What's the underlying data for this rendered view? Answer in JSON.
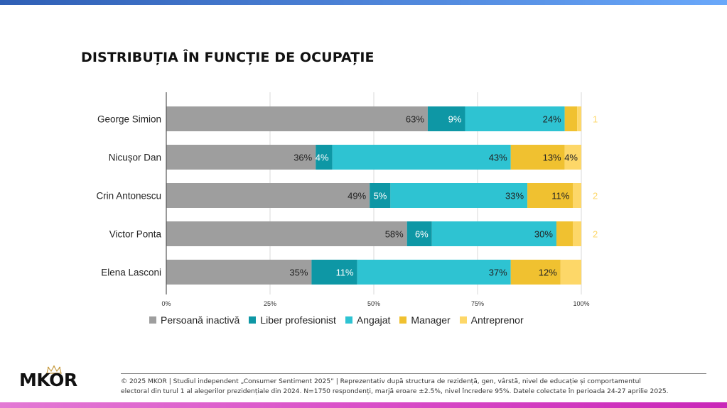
{
  "header": {
    "title": "DISTRIBUȚIA ÎN FUNCȚIE DE OCUPAȚIE"
  },
  "colors": {
    "top_bar": "#3f70c8",
    "bottom_bar": "#d94fc8",
    "gridline": "#d9d9d9",
    "axis": "#555555"
  },
  "chart_data": {
    "type": "bar",
    "orientation": "horizontal",
    "stacked": true,
    "title": "DISTRIBUȚIA ÎN FUNCȚIE DE OCUPAȚIE",
    "xlabel": "",
    "ylabel": "",
    "xlim": [
      0,
      100
    ],
    "x_ticks": [
      "0%",
      "25%",
      "50%",
      "75%",
      "100%"
    ],
    "grid": true,
    "legend_position": "bottom",
    "categories": [
      "George Simion",
      "Nicușor Dan",
      "Crin Antonescu",
      "Victor Ponta",
      "Elena Lasconi"
    ],
    "series": [
      {
        "name": "Persoană inactivă",
        "color": "#9e9e9e",
        "label_color": "#222222",
        "values": [
          63,
          36,
          49,
          58,
          35
        ],
        "labels": [
          "63%",
          "36%",
          "49%",
          "58%",
          "35%"
        ]
      },
      {
        "name": "Liber profesionist",
        "color": "#0e97a5",
        "label_color": "#ffffff",
        "values": [
          9,
          4,
          5,
          6,
          11
        ],
        "labels": [
          "9%",
          "4%",
          "5%",
          "6%",
          "11%"
        ]
      },
      {
        "name": "Angajat",
        "color": "#2ec3d2",
        "label_color": "#222222",
        "values": [
          24,
          43,
          33,
          30,
          37
        ],
        "labels": [
          "24%",
          "43%",
          "33%",
          "30%",
          "37%"
        ]
      },
      {
        "name": "Manager",
        "color": "#f0c130",
        "label_color": "#222222",
        "values": [
          3,
          13,
          11,
          4,
          12
        ],
        "labels": [
          "",
          "13%",
          "11%",
          "",
          "12%"
        ]
      },
      {
        "name": "Antreprenor",
        "color": "#fdd768",
        "label_color": "#222222",
        "values": [
          1,
          4,
          2,
          2,
          5
        ],
        "labels": [
          "1",
          "4%",
          "2",
          "2",
          ""
        ],
        "label_outside": [
          true,
          false,
          true,
          true,
          false
        ]
      }
    ]
  },
  "footer": {
    "logo": "MKOR",
    "line1": "© 2025 MKOR | Studiul independent „Consumer Sentiment 2025” | Reprezentativ după structura de rezidență, gen, vârstă, nivel de educație și comportamentul",
    "line2": "electoral din turul 1 al alegerilor prezidențiale din 2024. N=1750 respondenți, marjă eroare ±2.5%, nivel încredere 95%. Datele colectate în perioada 24-27 aprilie 2025."
  }
}
